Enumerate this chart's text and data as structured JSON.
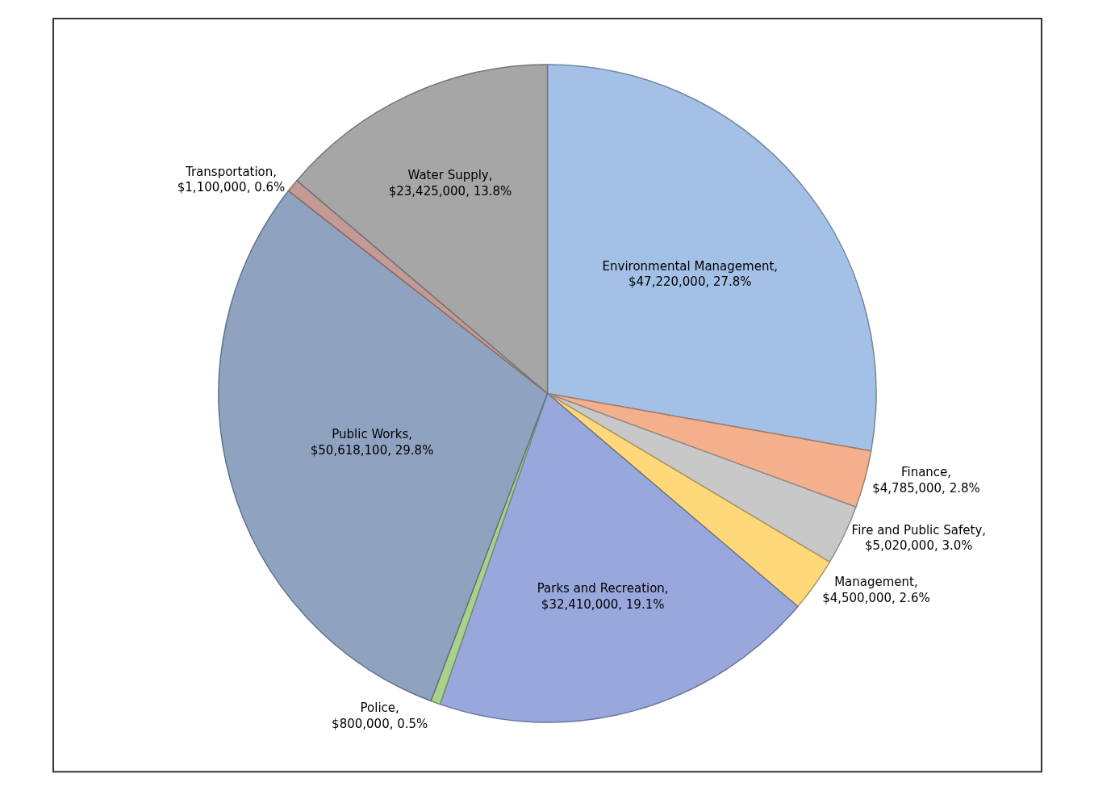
{
  "chart_data": {
    "type": "pie",
    "categories": [
      "Environmental Management",
      "Finance",
      "Fire and Public Safety",
      "Management",
      "Parks and Recreation",
      "Police",
      "Public Works",
      "Transportation",
      "Water Supply"
    ],
    "values": [
      47220000,
      4785000,
      5020000,
      4500000,
      32410000,
      800000,
      50618100,
      1100000,
      23425000
    ],
    "value_labels": [
      ", $47,220,000, 27.8%",
      ", $4,785,000, 2.8%",
      ", $5,020,000, 3.0%",
      ", $4,500,000, 2.6%",
      ", $32,410,000, 19.1%",
      ", $800,000, 0.5%",
      ", $50,618,100, 29.8%",
      ", $1,100,000, 0.6%",
      ", $23,425,000, 13.8%"
    ],
    "colors": [
      "#a3c1e6",
      "#f4b08c",
      "#c8c8c8",
      "#ffd87a",
      "#98a8dc",
      "#a9d18e",
      "#8fa3c0",
      "#c49a96",
      "#a6a6a6"
    ],
    "legend": false
  }
}
